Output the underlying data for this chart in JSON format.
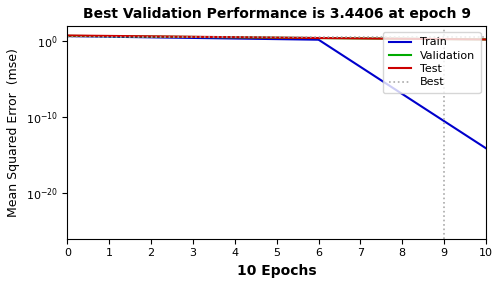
{
  "title": "Best Validation Performance is 3.4406 at epoch 9",
  "xlabel": "10 Epochs",
  "ylabel": "Mean Squared Error  (mse)",
  "xlim": [
    0,
    10
  ],
  "ylim_log": [
    -26,
    2
  ],
  "best_epoch": 9,
  "best_value": 3.4406,
  "train_color": "#0000cc",
  "validation_color": "#00aa00",
  "test_color": "#cc0000",
  "best_color": "#aaaaaa",
  "legend_labels": [
    "Train",
    "Validation",
    "Test",
    "Best"
  ],
  "xticks": [
    0,
    1,
    2,
    3,
    4,
    5,
    6,
    7,
    8,
    9,
    10
  ]
}
